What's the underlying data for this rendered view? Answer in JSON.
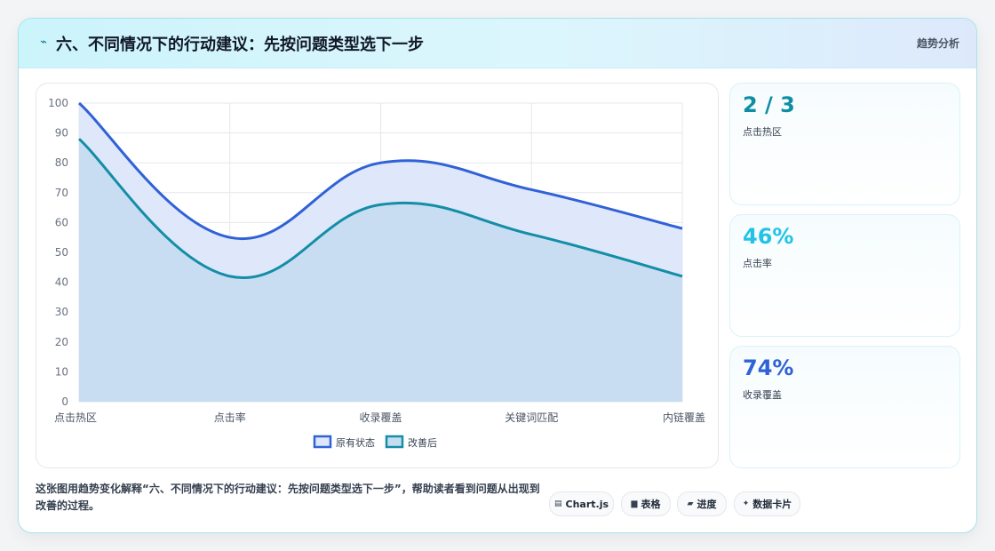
{
  "header": {
    "icon": "lightning-icon",
    "title": "六、不同情况下的行动建议：先按问题类型选下一步",
    "link": "趋势分析"
  },
  "chart_data": {
    "type": "area",
    "categories": [
      "点击热区",
      "点击率",
      "收录覆盖",
      "关键词匹配",
      "内链覆盖"
    ],
    "series": [
      {
        "name": "原有状态",
        "values": [
          100,
          55,
          80,
          71,
          58
        ],
        "color": "#2f62d6",
        "fill": "#dde6fb"
      },
      {
        "name": "改善后",
        "values": [
          88,
          42,
          66,
          56,
          42
        ],
        "color": "#138ea6",
        "fill": "#c5dcf1"
      }
    ],
    "ylim": [
      0,
      100
    ],
    "yticks": [
      0,
      10,
      20,
      30,
      40,
      50,
      60,
      70,
      80,
      90,
      100
    ],
    "grid": true,
    "legend": "bottom"
  },
  "stats": [
    {
      "value": "2 / 3",
      "label": "点击热区",
      "color": "#0e8ea3"
    },
    {
      "value": "46%",
      "label": "点击率",
      "color": "#22c3e6"
    },
    {
      "value": "74%",
      "label": "收录覆盖",
      "color": "#2f62d6"
    }
  ],
  "footer": {
    "text": "这张图用趋势变化解释“六、不同情况下的行动建议：先按问题类型选下一步”，帮助读者看到问题从出现到改善的过程。",
    "chips": [
      {
        "icon": "chart-icon",
        "glyph": "▤",
        "label": "Chart.js"
      },
      {
        "icon": "table-icon",
        "glyph": "▆",
        "label": "表格"
      },
      {
        "icon": "progress-icon",
        "glyph": "▰",
        "label": "进度"
      },
      {
        "icon": "sparkle-icon",
        "glyph": "✦",
        "label": "数据卡片"
      }
    ]
  }
}
